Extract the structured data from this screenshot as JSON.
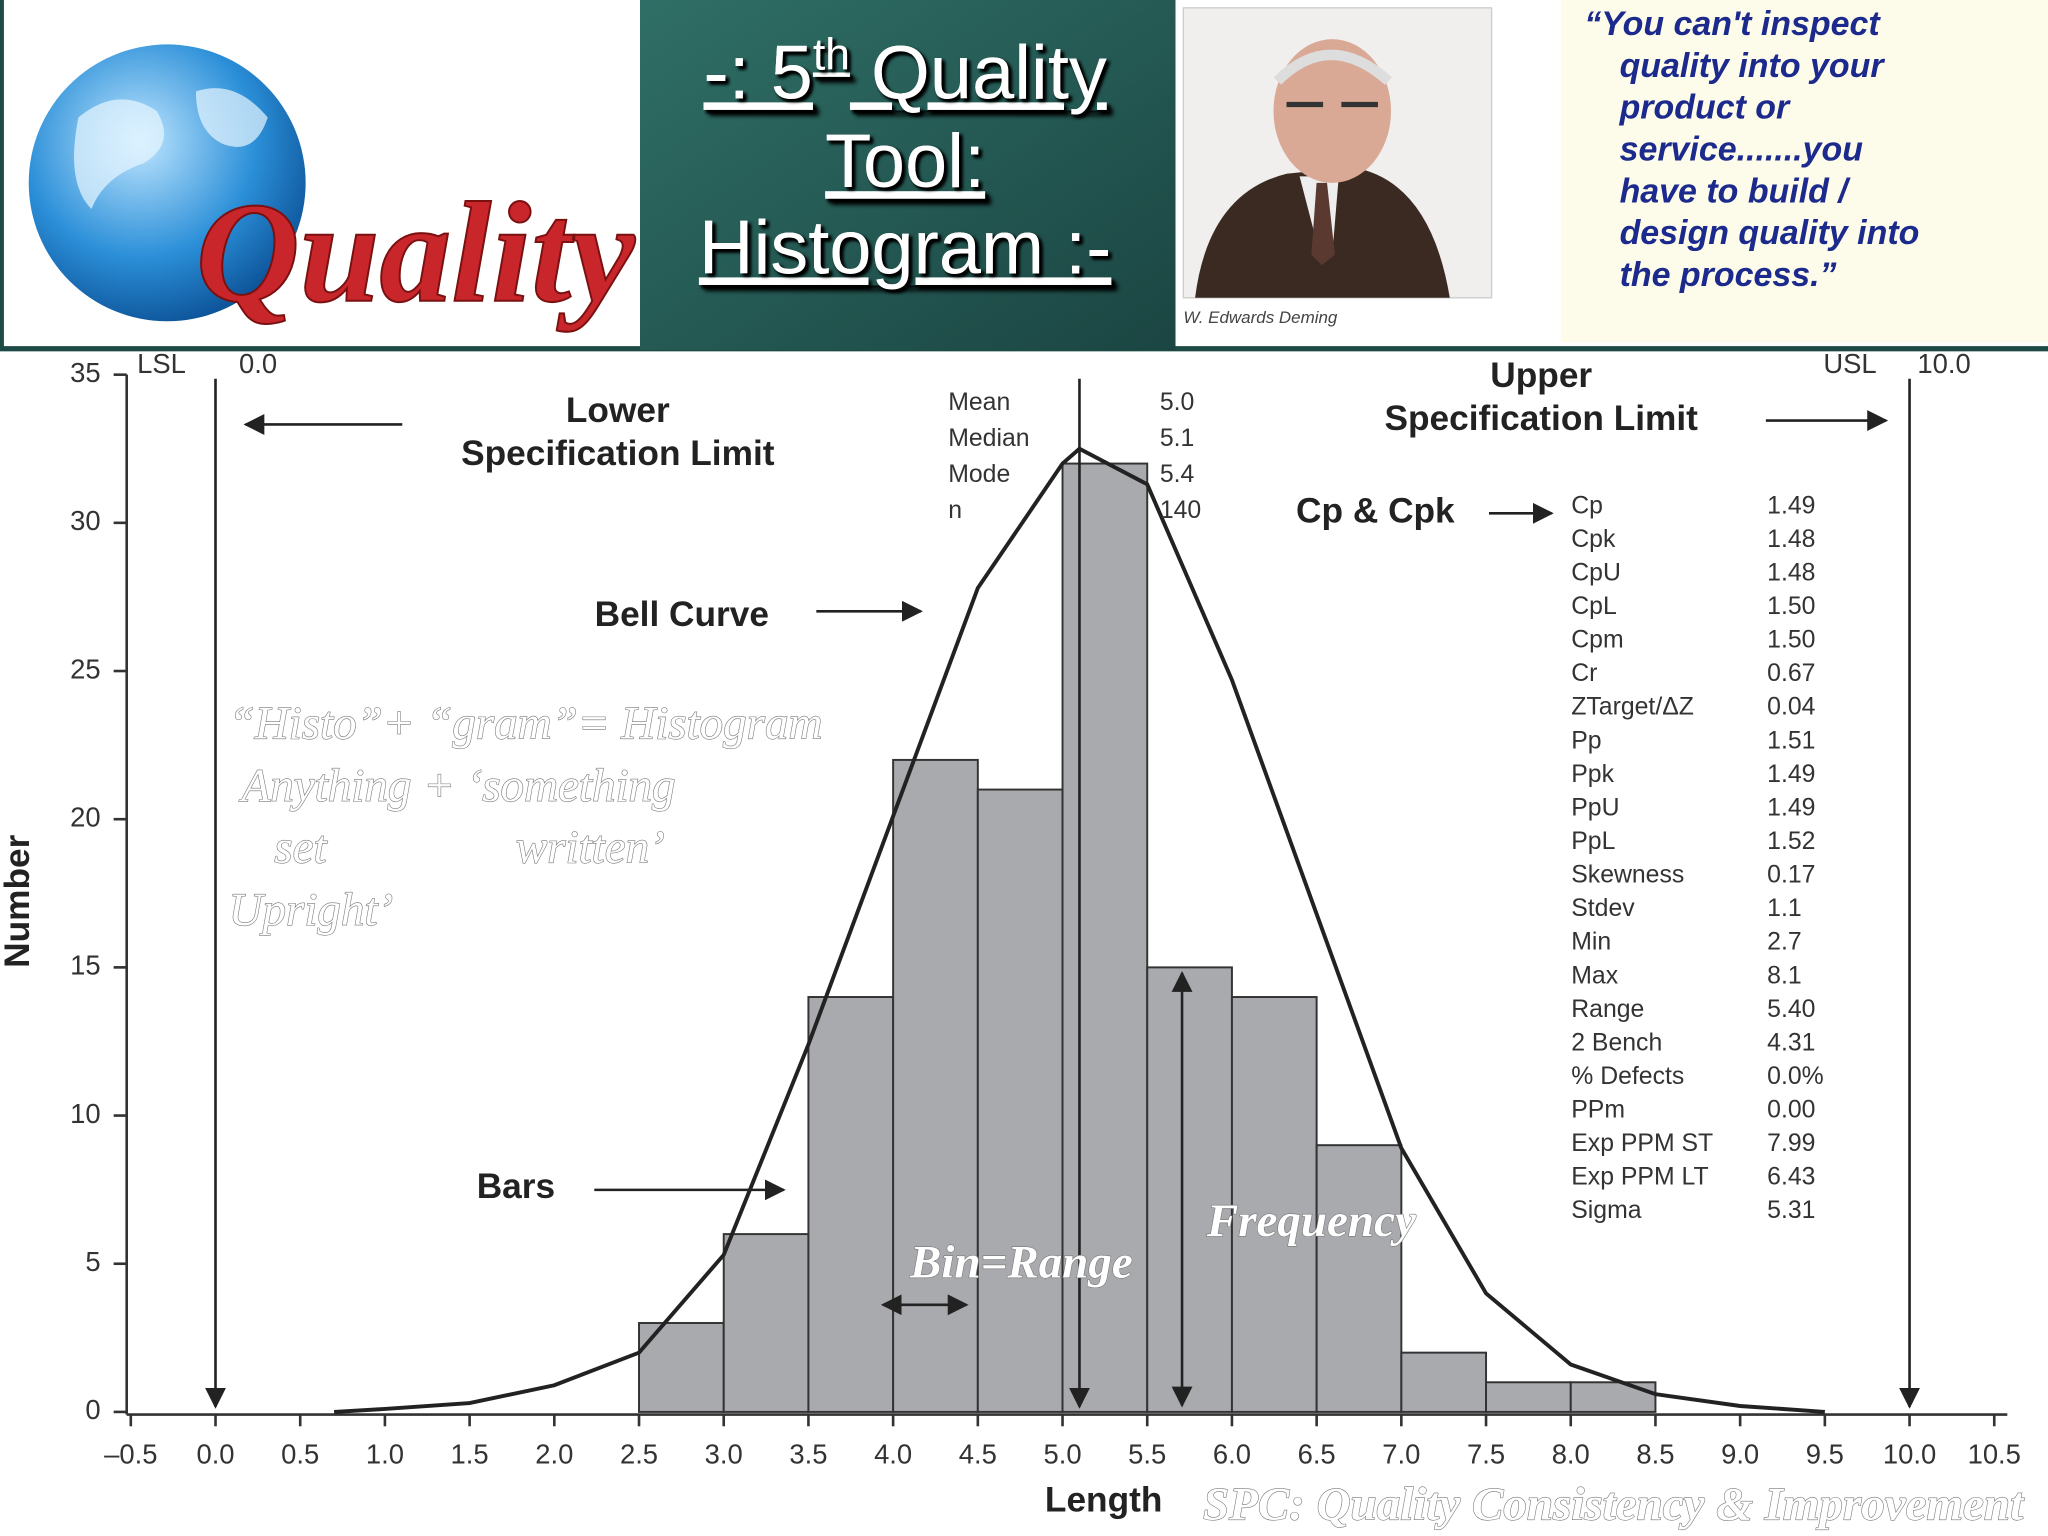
{
  "header": {
    "logo": "Quality",
    "title": {
      "prefix": "-: 5",
      "superscript": "th",
      "suffix": " Quality",
      "line2": "Tool:",
      "line3": "Histogram :-"
    },
    "caption": "W. Edwards Deming",
    "quote": [
      "“You can't inspect",
      "quality into your",
      "product or",
      "service.......you",
      "have to build /",
      "design quality into",
      "the process.”"
    ]
  },
  "chart_data": {
    "type": "histogram",
    "x_label": "Length",
    "y_label": "Number",
    "color": "#a9aaae",
    "bins": [
      2.5,
      3.0,
      3.5,
      4.0,
      4.5,
      5.0,
      5.5,
      6.0,
      6.5,
      7.0,
      7.5,
      8.0,
      8.5
    ],
    "values": [
      3,
      6,
      14,
      22,
      21,
      32,
      15,
      14,
      9,
      2,
      1,
      1
    ],
    "xlim": [
      -0.5,
      10.5
    ],
    "ylim": [
      0,
      35
    ],
    "xticks": [
      {
        "value": -0.5,
        "label": "–0.5"
      },
      {
        "value": 0,
        "label": "0.0"
      },
      0.5,
      {
        "value": 1,
        "label": "1.0"
      },
      1.5,
      {
        "value": 2,
        "label": "2.0"
      },
      2.5,
      {
        "value": 3,
        "label": "3.0"
      },
      3.5,
      {
        "value": 4,
        "label": "4.0"
      },
      4.5,
      {
        "value": 5,
        "label": "5.0"
      },
      5.5,
      {
        "value": 6,
        "label": "6.0"
      },
      6.5,
      {
        "value": 7,
        "label": "7.0"
      },
      7.5,
      {
        "value": 8,
        "label": "8.0"
      },
      8.5,
      {
        "value": 9,
        "label": "9.0"
      },
      9.5,
      {
        "value": 10,
        "label": "10.0"
      },
      10.5
    ],
    "yticks": [
      0,
      5,
      10,
      15,
      20,
      25,
      30,
      35
    ],
    "curve": {
      "x": [
        0.7,
        1.0,
        1.5,
        2.0,
        2.5,
        3.0,
        3.5,
        4.0,
        4.5,
        5.0,
        5.1,
        5.5,
        6.0,
        6.5,
        7.0,
        7.5,
        8.0,
        8.5,
        9.0,
        9.5
      ],
      "y": [
        0,
        0.1,
        0.3,
        0.9,
        2.0,
        5.3,
        12.4,
        20.1,
        27.8,
        32.0,
        32.5,
        31.3,
        24.7,
        16.8,
        8.9,
        4.0,
        1.6,
        0.6,
        0.2,
        0
      ]
    },
    "lsl": {
      "label": "LSL",
      "value": "0.0",
      "x": 0,
      "name_line1": "Lower",
      "name_line2": "Specification Limit"
    },
    "usl": {
      "label": "USL",
      "value": "10.0",
      "x": 10,
      "name_line1": "Upper",
      "name_line2": "Specification Limit"
    },
    "mean_x": 5.1,
    "summary": [
      {
        "label": "Mean",
        "value": "5.0"
      },
      {
        "label": "Median",
        "value": "5.1"
      },
      {
        "label": "Mode",
        "value": "5.4"
      },
      {
        "label": "n",
        "value": "140"
      }
    ],
    "capability_title": "Cp & Cpk",
    "capability": [
      {
        "label": "Cp",
        "value": "1.49"
      },
      {
        "label": "Cpk",
        "value": "1.48"
      },
      {
        "label": "CpU",
        "value": "1.48"
      },
      {
        "label": "CpL",
        "value": "1.50"
      },
      {
        "label": "Cpm",
        "value": "1.50"
      },
      {
        "label": "Cr",
        "value": "0.67"
      },
      {
        "label": "ZTarget/ΔZ",
        "value": "0.04"
      },
      {
        "label": "Pp",
        "value": "1.51"
      },
      {
        "label": "Ppk",
        "value": "1.49"
      },
      {
        "label": "PpU",
        "value": "1.49"
      },
      {
        "label": "PpL",
        "value": "1.52"
      },
      {
        "label": "Skewness",
        "value": "0.17"
      },
      {
        "label": "Stdev",
        "value": "1.1"
      },
      {
        "label": "Min",
        "value": "2.7"
      },
      {
        "label": "Max",
        "value": "8.1"
      },
      {
        "label": "Range",
        "value": "5.40"
      },
      {
        "label": "2 Bench",
        "value": "4.31"
      },
      {
        "label": "% Defects",
        "value": "0.0%"
      },
      {
        "label": "PPm",
        "value": "0.00"
      },
      {
        "label": "Exp PPM ST",
        "value": "7.99"
      },
      {
        "label": "Exp PPM LT",
        "value": "6.43"
      },
      {
        "label": "Sigma",
        "value": "5.31"
      }
    ],
    "annotations": {
      "bell_curve": "Bell Curve",
      "bars": "Bars",
      "bin": "Bin=Range",
      "frequency": "Frequency",
      "overlay": [
        "“Histo”+ “gram”= Histogram",
        "Anything + ‘something",
        "set",
        "written’",
        "Upright’"
      ],
      "footer": "SPC: Quality Consistency & Improvement"
    }
  }
}
